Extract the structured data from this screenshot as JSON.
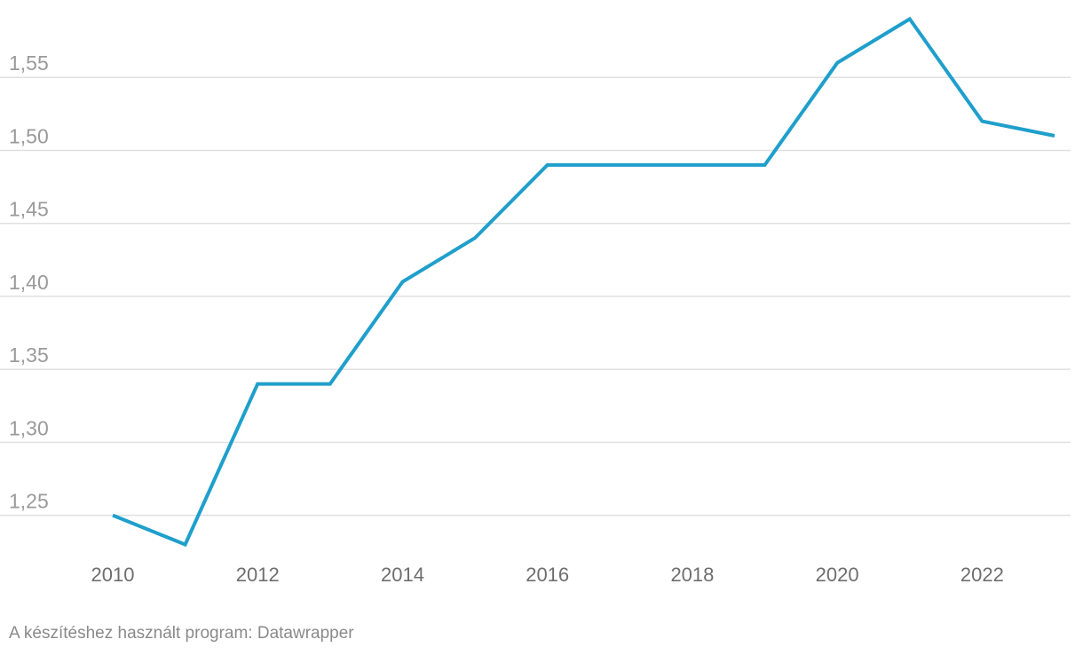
{
  "chart_data": {
    "type": "line",
    "x": [
      2010,
      2011,
      2012,
      2013,
      2014,
      2015,
      2016,
      2017,
      2018,
      2019,
      2020,
      2021,
      2022,
      2023
    ],
    "series": [
      {
        "values": [
          1.25,
          1.23,
          1.34,
          1.34,
          1.41,
          1.44,
          1.49,
          1.49,
          1.49,
          1.49,
          1.56,
          1.59,
          1.52,
          1.51
        ],
        "color": "#1f9fcb"
      }
    ],
    "yticks": [
      1.25,
      1.3,
      1.35,
      1.4,
      1.45,
      1.5,
      1.55
    ],
    "ytick_labels": [
      "1,25",
      "1,30",
      "1,35",
      "1,40",
      "1,45",
      "1,50",
      "1,55"
    ],
    "xticks": [
      2010,
      2012,
      2014,
      2016,
      2018,
      2020,
      2022
    ],
    "xtick_labels": [
      "2010",
      "2012",
      "2014",
      "2016",
      "2018",
      "2020",
      "2022"
    ],
    "ylim": [
      1.2215,
      1.6
    ],
    "xlim": [
      2010,
      2023
    ],
    "grid": true,
    "legend": "none"
  },
  "footer": {
    "credit": "A készítéshez használt program: Datawrapper"
  }
}
